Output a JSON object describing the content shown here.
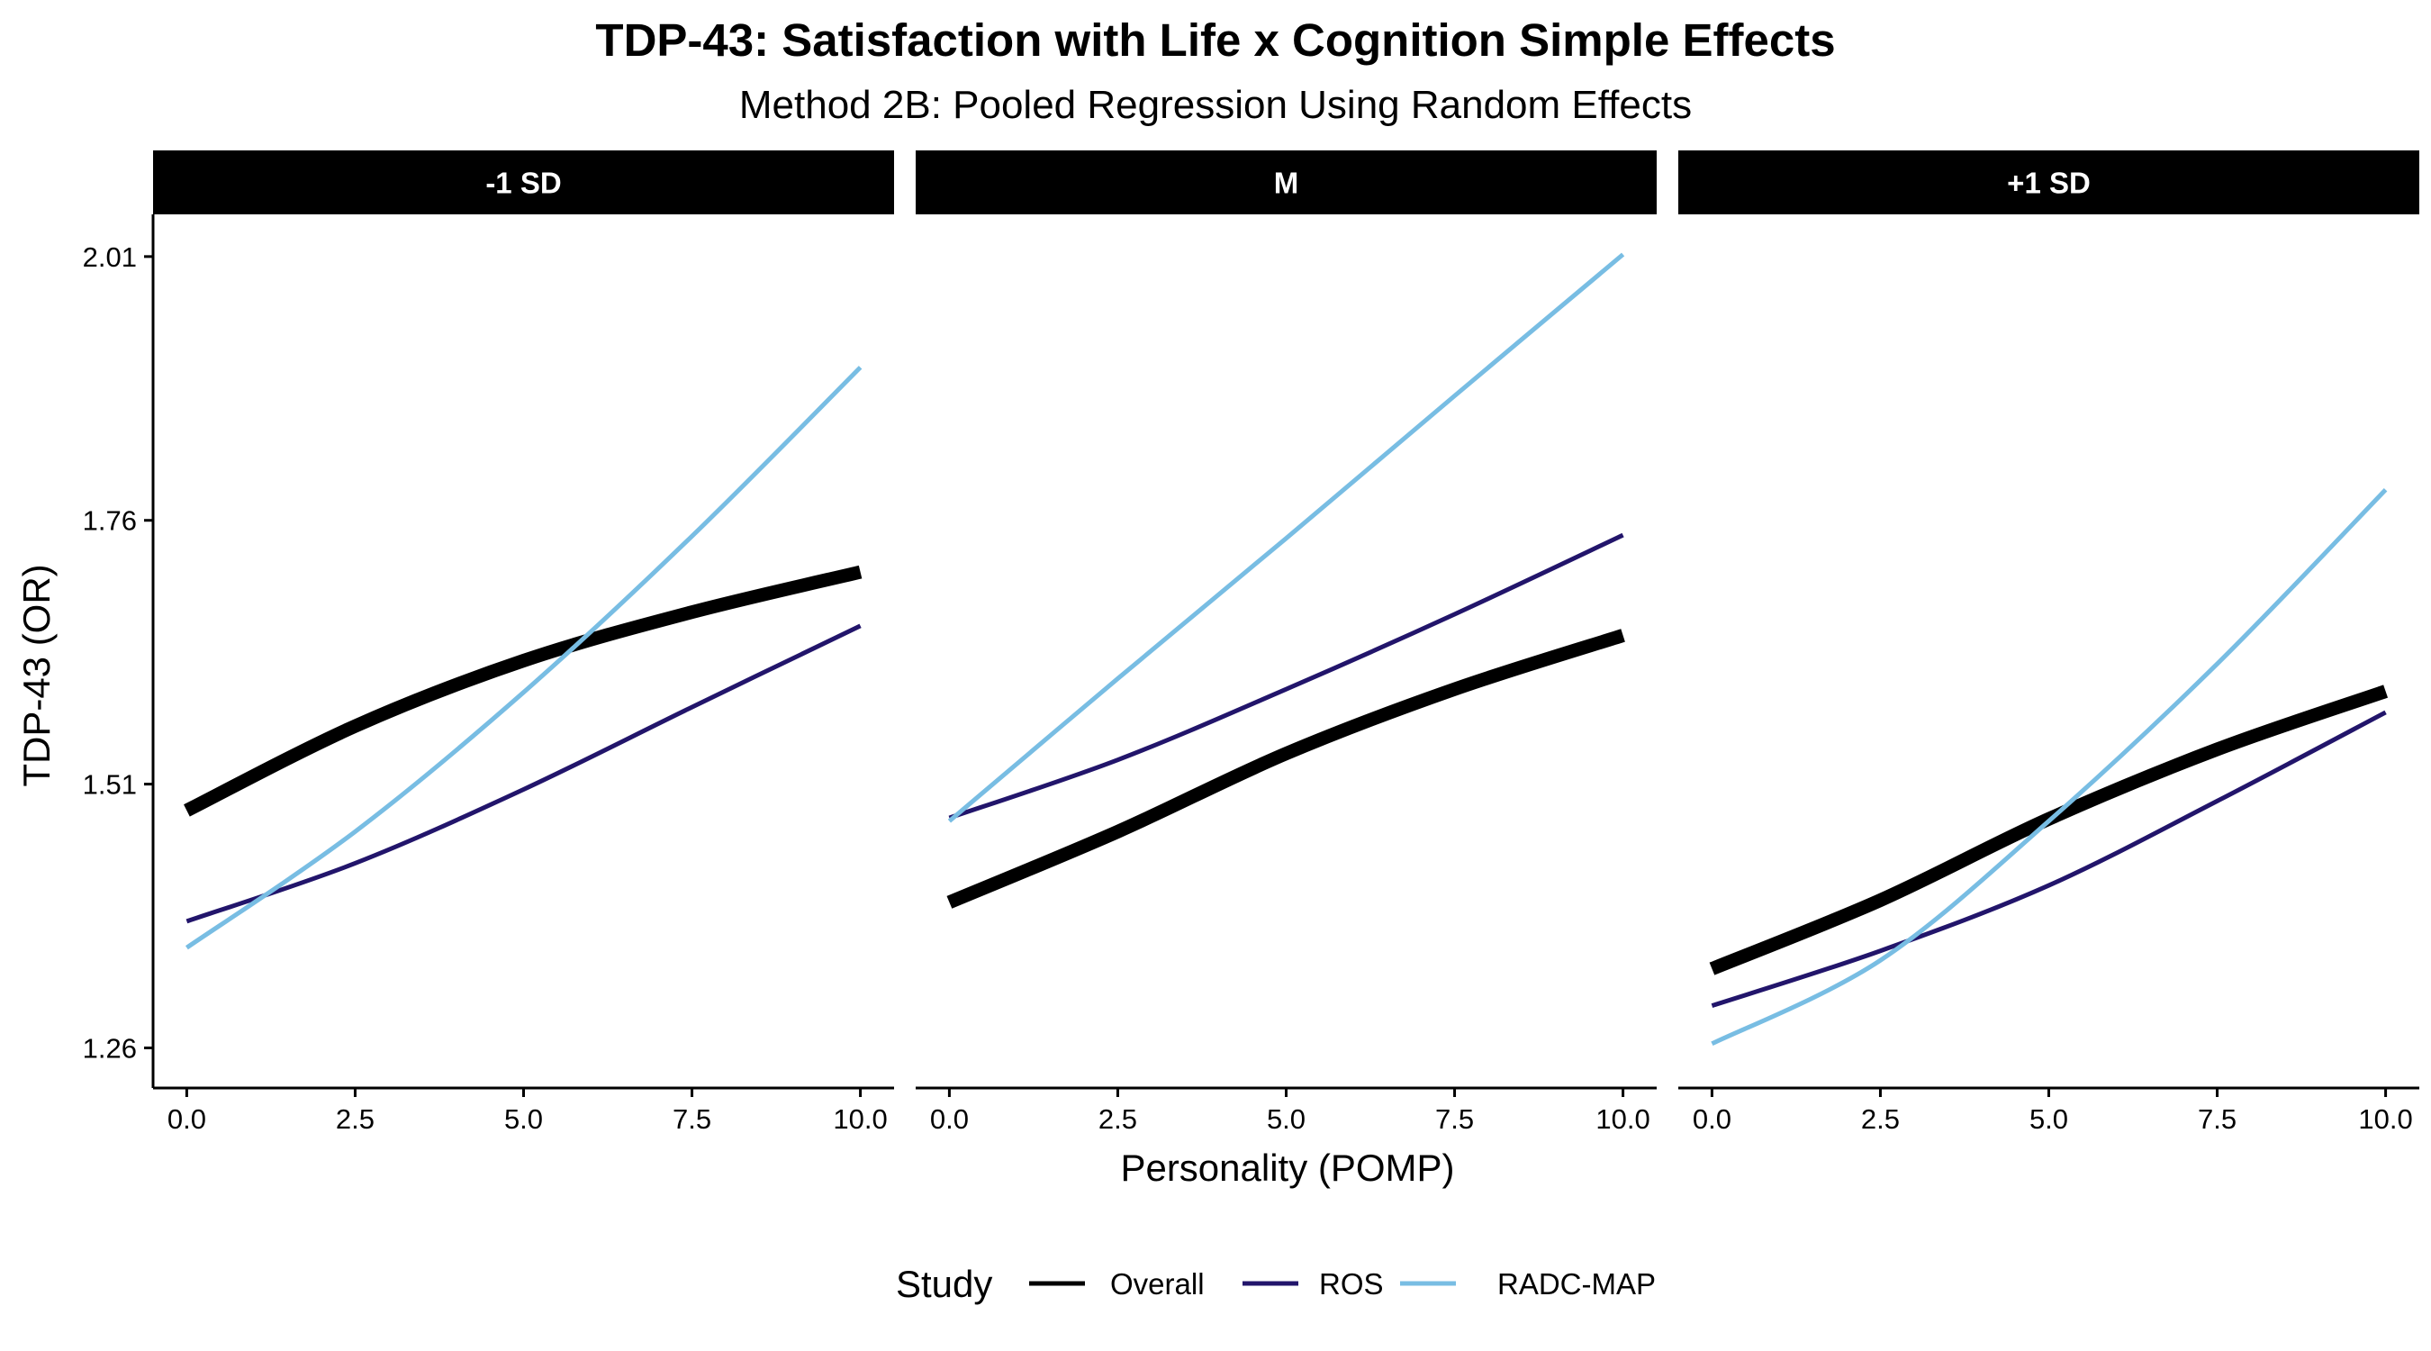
{
  "chart_data": {
    "type": "line",
    "title": "TDP-43: Satisfaction with Life x Cognition Simple Effects",
    "subtitle": "Method 2B: Pooled Regression Using Random Effects",
    "xlabel": "Personality (POMP)",
    "ylabel": "TDP-43 (OR)",
    "xlim": [
      -0.5,
      10.5
    ],
    "ylim": [
      1.222,
      2.05
    ],
    "x_ticks": [
      0,
      2.5,
      5,
      7.5,
      10
    ],
    "x_tick_labels": [
      "0.0",
      "2.5",
      "5.0",
      "7.5",
      "10.0"
    ],
    "y_ticks": [
      1.26,
      1.51,
      1.76,
      2.01
    ],
    "y_tick_labels": [
      "1.26",
      "1.51",
      "1.76",
      "2.01"
    ],
    "grid": false,
    "legend": {
      "title": "Study",
      "position": "bottom",
      "entries": [
        "Overall",
        "ROS",
        "RADC-MAP"
      ]
    },
    "series_styles": [
      {
        "name": "Overall",
        "color": "#000000",
        "width": "thick"
      },
      {
        "name": "ROS",
        "color": "#22156b",
        "width": "thin"
      },
      {
        "name": "RADC-MAP",
        "color": "#78bde3",
        "width": "thin"
      }
    ],
    "x": [
      0,
      2.5,
      5,
      7.5,
      10
    ],
    "panels": [
      {
        "label": "-1 SD",
        "series": [
          {
            "name": "Overall",
            "values": [
              1.485,
              1.565,
              1.627,
              1.673,
              1.711
            ]
          },
          {
            "name": "ROS",
            "values": [
              1.38,
              1.435,
              1.505,
              1.583,
              1.66
            ]
          },
          {
            "name": "RADC-MAP",
            "values": [
              1.355,
              1.465,
              1.597,
              1.745,
              1.905
            ]
          }
        ]
      },
      {
        "label": "M",
        "series": [
          {
            "name": "Overall",
            "values": [
              1.398,
              1.465,
              1.539,
              1.6,
              1.651
            ]
          },
          {
            "name": "ROS",
            "values": [
              1.478,
              1.533,
              1.6,
              1.671,
              1.746
            ]
          },
          {
            "name": "RADC-MAP",
            "values": [
              1.475,
              1.61,
              1.743,
              1.878,
              2.012
            ]
          }
        ]
      },
      {
        "label": "+1 SD",
        "series": [
          {
            "name": "Overall",
            "values": [
              1.335,
              1.4,
              1.477,
              1.543,
              1.598
            ]
          },
          {
            "name": "ROS",
            "values": [
              1.3,
              1.352,
              1.414,
              1.494,
              1.578
            ]
          },
          {
            "name": "RADC-MAP",
            "values": [
              1.264,
              1.343,
              1.475,
              1.624,
              1.789
            ]
          }
        ]
      }
    ]
  }
}
